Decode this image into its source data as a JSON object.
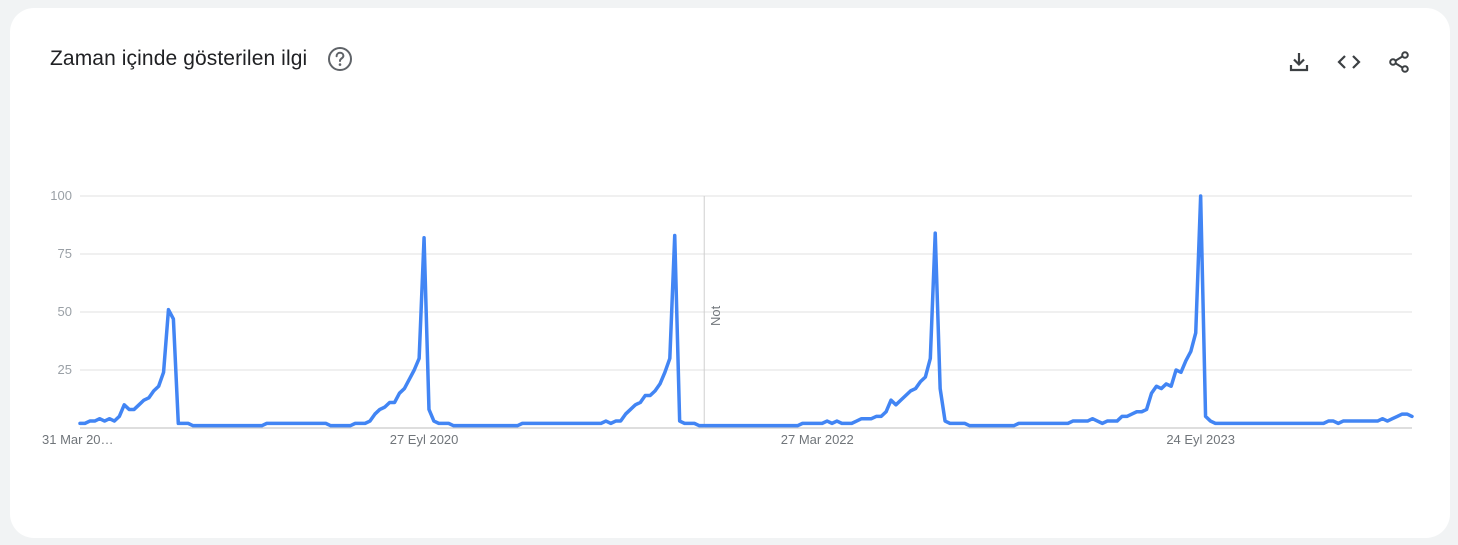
{
  "header": {
    "title": "Zaman içinde gösterilen ilgi"
  },
  "icons": {
    "help": "help-circle-icon",
    "download": "download-icon",
    "embed": "code-icon",
    "share": "share-icon"
  },
  "colors": {
    "line": "#4285f4",
    "grid": "#e0e0e0",
    "tick_text": "#9aa0a6"
  },
  "chart_data": {
    "type": "line",
    "ylim": [
      0,
      100
    ],
    "y_ticks": [
      100,
      75,
      50,
      25
    ],
    "x_tick_labels": [
      "31 Mar 20…",
      "27 Eyl 2020",
      "27 Mar 2022",
      "24 Eyl 2023"
    ],
    "annotation": "Not",
    "grid": true,
    "series": [
      {
        "values": [
          2,
          2,
          3,
          3,
          4,
          3,
          4,
          3,
          5,
          10,
          8,
          8,
          10,
          12,
          13,
          16,
          18,
          24,
          51,
          47,
          2,
          2,
          2,
          1,
          1,
          1,
          1,
          1,
          1,
          1,
          1,
          1,
          1,
          1,
          1,
          1,
          1,
          1,
          2,
          2,
          2,
          2,
          2,
          2,
          2,
          2,
          2,
          2,
          2,
          2,
          2,
          1,
          1,
          1,
          1,
          1,
          2,
          2,
          2,
          3,
          6,
          8,
          9,
          11,
          11,
          15,
          17,
          21,
          25,
          30,
          82,
          8,
          3,
          2,
          2,
          2,
          1,
          1,
          1,
          1,
          1,
          1,
          1,
          1,
          1,
          1,
          1,
          1,
          1,
          1,
          2,
          2,
          2,
          2,
          2,
          2,
          2,
          2,
          2,
          2,
          2,
          2,
          2,
          2,
          2,
          2,
          2,
          3,
          2,
          3,
          3,
          6,
          8,
          10,
          11,
          14,
          14,
          16,
          19,
          24,
          30,
          83,
          3,
          2,
          2,
          2,
          1,
          1,
          1,
          1,
          1,
          1,
          1,
          1,
          1,
          1,
          1,
          1,
          1,
          1,
          1,
          1,
          1,
          1,
          1,
          1,
          1,
          2,
          2,
          2,
          2,
          2,
          3,
          2,
          3,
          2,
          2,
          2,
          3,
          4,
          4,
          4,
          5,
          5,
          7,
          12,
          10,
          12,
          14,
          16,
          17,
          20,
          22,
          30,
          84,
          17,
          3,
          2,
          2,
          2,
          2,
          1,
          1,
          1,
          1,
          1,
          1,
          1,
          1,
          1,
          1,
          2,
          2,
          2,
          2,
          2,
          2,
          2,
          2,
          2,
          2,
          2,
          3,
          3,
          3,
          3,
          4,
          3,
          2,
          3,
          3,
          3,
          5,
          5,
          6,
          7,
          7,
          8,
          15,
          18,
          17,
          19,
          18,
          25,
          24,
          29,
          33,
          41,
          100,
          5,
          3,
          2,
          2,
          2,
          2,
          2,
          2,
          2,
          2,
          2,
          2,
          2,
          2,
          2,
          2,
          2,
          2,
          2,
          2,
          2,
          2,
          2,
          2,
          2,
          3,
          3,
          2,
          3,
          3,
          3,
          3,
          3,
          3,
          3,
          3,
          4,
          3,
          4,
          5,
          6,
          6,
          5
        ]
      }
    ]
  }
}
